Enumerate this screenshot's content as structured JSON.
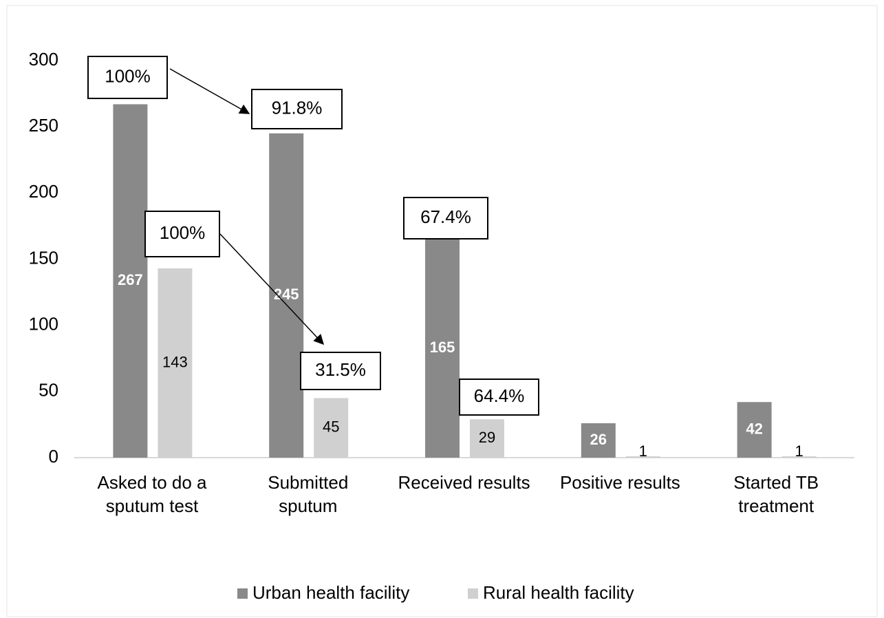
{
  "chart_data": {
    "type": "bar",
    "categories": [
      "Asked to do a\nsputum test",
      "Submitted\nsputum",
      "Received results",
      "Positive results",
      "Started TB\ntreatment"
    ],
    "series": [
      {
        "name": "Urban health facility",
        "color": "#898989",
        "values": [
          267,
          245,
          165,
          26,
          42
        ]
      },
      {
        "name": "Rural health facility",
        "color": "#d0d0d0",
        "values": [
          143,
          45,
          29,
          1,
          1
        ]
      }
    ],
    "ylim": [
      0,
      300
    ],
    "yticks": [
      0,
      50,
      100,
      150,
      200,
      250,
      300
    ],
    "grid": false,
    "legend": "bottom",
    "annotations": [
      {
        "text": "100%"
      },
      {
        "text": "91.8%"
      },
      {
        "text": "100%"
      },
      {
        "text": "31.5%"
      },
      {
        "text": "67.4%"
      },
      {
        "text": "64.4%"
      }
    ]
  }
}
